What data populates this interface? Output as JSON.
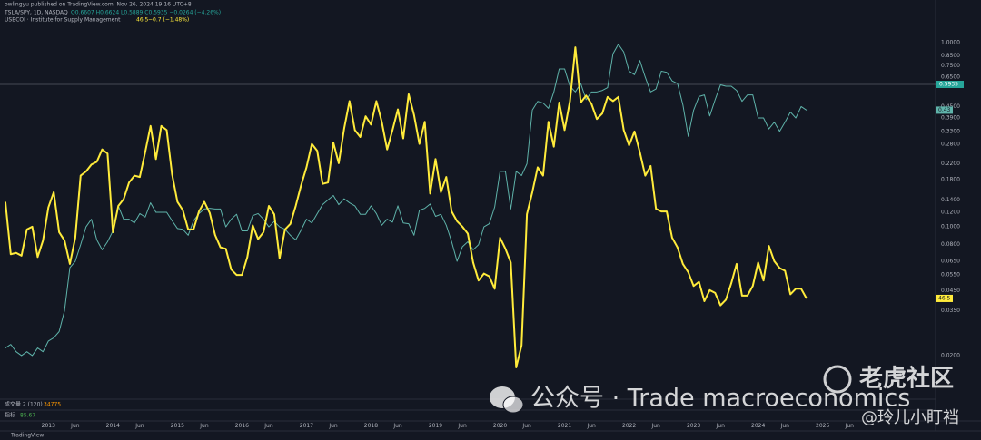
{
  "header": {
    "publisher": "owlingyu published on TradingView.com, Nov 26, 2024 19:16 UTC+8",
    "price_ohlc": "O0.6607 H0.6624 L0.5889 C0.5935 −0.0264 (−4.26%)",
    "ism_change": "−0.7 (−1.48%)"
  },
  "panes": [
    {
      "label": "成交量 2 (120)",
      "value": "34775"
    },
    {
      "label": "指标",
      "value": "85.67"
    }
  ],
  "watermark": {
    "wechat": "公众号 · Trade macroeconomics",
    "community": "老虎社区",
    "author": "@玲儿小盯裆"
  },
  "footer": {
    "brand": "TradingView"
  },
  "chart_data": {
    "type": "line",
    "x": [
      "2012-05",
      "2012-06",
      "2012-07",
      "2012-08",
      "2012-09",
      "2012-10",
      "2012-11",
      "2012-12",
      "2013-01",
      "2013-02",
      "2013-03",
      "2013-04",
      "2013-05",
      "2013-06",
      "2013-07",
      "2013-08",
      "2013-09",
      "2013-10",
      "2013-11",
      "2013-12",
      "2014-01",
      "2014-02",
      "2014-03",
      "2014-04",
      "2014-05",
      "2014-06",
      "2014-07",
      "2014-08",
      "2014-09",
      "2014-10",
      "2014-11",
      "2014-12",
      "2015-01",
      "2015-02",
      "2015-03",
      "2015-04",
      "2015-05",
      "2015-06",
      "2015-07",
      "2015-08",
      "2015-09",
      "2015-10",
      "2015-11",
      "2015-12",
      "2016-01",
      "2016-02",
      "2016-03",
      "2016-04",
      "2016-05",
      "2016-06",
      "2016-07",
      "2016-08",
      "2016-09",
      "2016-10",
      "2016-11",
      "2016-12",
      "2017-01",
      "2017-02",
      "2017-03",
      "2017-04",
      "2017-05",
      "2017-06",
      "2017-07",
      "2017-08",
      "2017-09",
      "2017-10",
      "2017-11",
      "2017-12",
      "2018-01",
      "2018-02",
      "2018-03",
      "2018-04",
      "2018-05",
      "2018-06",
      "2018-07",
      "2018-08",
      "2018-09",
      "2018-10",
      "2018-11",
      "2018-12",
      "2019-01",
      "2019-02",
      "2019-03",
      "2019-04",
      "2019-05",
      "2019-06",
      "2019-07",
      "2019-08",
      "2019-09",
      "2019-10",
      "2019-11",
      "2019-12",
      "2020-01",
      "2020-02",
      "2020-03",
      "2020-04",
      "2020-05",
      "2020-06",
      "2020-07",
      "2020-08",
      "2020-09",
      "2020-10",
      "2020-11",
      "2020-12",
      "2021-01",
      "2021-02",
      "2021-03",
      "2021-04",
      "2021-05",
      "2021-06",
      "2021-07",
      "2021-08",
      "2021-09",
      "2021-10",
      "2021-11",
      "2021-12",
      "2022-01",
      "2022-02",
      "2022-03",
      "2022-04",
      "2022-05",
      "2022-06",
      "2022-07",
      "2022-08",
      "2022-09",
      "2022-10",
      "2022-11",
      "2022-12",
      "2023-01",
      "2023-02",
      "2023-03",
      "2023-04",
      "2023-05",
      "2023-06",
      "2023-07",
      "2023-08",
      "2023-09",
      "2023-10",
      "2023-11",
      "2023-12",
      "2024-01",
      "2024-02",
      "2024-03",
      "2024-04",
      "2024-05",
      "2024-06",
      "2024-07",
      "2024-08",
      "2024-09",
      "2024-10"
    ],
    "series": [
      {
        "name": "TSLA/SPY, 1D, NASDAQ",
        "color": "#5fb3aa",
        "axis": "y",
        "values": [
          0.022,
          0.023,
          0.021,
          0.02,
          0.021,
          0.02,
          0.022,
          0.021,
          0.024,
          0.025,
          0.027,
          0.035,
          0.06,
          0.065,
          0.08,
          0.1,
          0.11,
          0.085,
          0.075,
          0.083,
          0.095,
          0.13,
          0.11,
          0.11,
          0.105,
          0.118,
          0.113,
          0.135,
          0.12,
          0.12,
          0.12,
          0.108,
          0.098,
          0.097,
          0.09,
          0.108,
          0.118,
          0.125,
          0.126,
          0.125,
          0.125,
          0.1,
          0.11,
          0.117,
          0.095,
          0.095,
          0.115,
          0.118,
          0.11,
          0.1,
          0.107,
          0.1,
          0.097,
          0.09,
          0.085,
          0.096,
          0.11,
          0.105,
          0.118,
          0.132,
          0.14,
          0.148,
          0.132,
          0.142,
          0.135,
          0.13,
          0.117,
          0.117,
          0.13,
          0.118,
          0.102,
          0.11,
          0.106,
          0.13,
          0.105,
          0.104,
          0.09,
          0.123,
          0.126,
          0.133,
          0.114,
          0.117,
          0.102,
          0.083,
          0.065,
          0.078,
          0.083,
          0.075,
          0.08,
          0.1,
          0.104,
          0.128,
          0.2,
          0.2,
          0.125,
          0.2,
          0.19,
          0.22,
          0.43,
          0.48,
          0.47,
          0.44,
          0.54,
          0.72,
          0.72,
          0.58,
          0.54,
          0.6,
          0.49,
          0.54,
          0.54,
          0.55,
          0.57,
          0.87,
          0.98,
          0.89,
          0.7,
          0.67,
          0.8,
          0.65,
          0.54,
          0.56,
          0.7,
          0.69,
          0.62,
          0.6,
          0.46,
          0.31,
          0.43,
          0.51,
          0.52,
          0.4,
          0.49,
          0.59,
          0.58,
          0.58,
          0.55,
          0.48,
          0.52,
          0.52,
          0.39,
          0.39,
          0.34,
          0.37,
          0.33,
          0.37,
          0.42,
          0.39,
          0.45,
          0.43
        ]
      },
      {
        "name": "USBCOI · Institute for Supply Management",
        "color": "#ffeb3b",
        "axis": "y2",
        "values": [
          53.5,
          49.7,
          49.8,
          49.6,
          51.5,
          51.7,
          49.5,
          50.7,
          53.1,
          54.2,
          51.3,
          50.7,
          49.0,
          50.9,
          55.4,
          55.7,
          56.2,
          56.4,
          57.3,
          57.0,
          51.3,
          53.2,
          53.7,
          54.9,
          55.4,
          55.3,
          57.1,
          59.0,
          56.6,
          59.0,
          58.7,
          55.5,
          53.5,
          52.9,
          51.5,
          51.5,
          52.8,
          53.5,
          52.7,
          51.1,
          50.2,
          50.1,
          48.6,
          48.2,
          48.2,
          49.5,
          51.8,
          50.8,
          51.3,
          53.2,
          52.6,
          49.4,
          51.5,
          51.9,
          53.2,
          54.7,
          56.0,
          57.7,
          57.2,
          54.8,
          54.9,
          57.8,
          56.3,
          58.8,
          60.8,
          58.7,
          58.2,
          59.7,
          59.1,
          60.8,
          59.3,
          57.3,
          58.7,
          60.2,
          58.1,
          61.3,
          59.8,
          57.7,
          59.3,
          54.1,
          56.6,
          54.2,
          55.3,
          52.8,
          52.1,
          51.7,
          51.2,
          49.1,
          47.8,
          48.3,
          48.1,
          47.2,
          50.9,
          50.1,
          49.1,
          41.5,
          43.1,
          52.6,
          54.2,
          56.0,
          55.4,
          59.3,
          57.5,
          60.7,
          58.7,
          60.8,
          64.7,
          60.7,
          61.2,
          60.6,
          59.5,
          59.9,
          61.1,
          60.8,
          61.1,
          58.7,
          57.6,
          58.6,
          57.1,
          55.4,
          56.1,
          53.0,
          52.8,
          52.8,
          50.9,
          50.2,
          49.0,
          48.4,
          47.4,
          47.7,
          46.3,
          47.1,
          46.9,
          46.0,
          46.4,
          47.6,
          49.0,
          46.7,
          46.7,
          47.4,
          49.1,
          47.8,
          50.3,
          49.2,
          48.7,
          48.5,
          46.8,
          47.2,
          47.2,
          46.5
        ]
      }
    ],
    "xlim": [
      "2012-04",
      "2026-10"
    ],
    "xticks": [
      2013,
      {
        "value": "2013-06",
        "label": "Jun"
      },
      2014,
      {
        "value": "2014-06",
        "label": "Jun"
      },
      2015,
      {
        "value": "2015-06",
        "label": "Jun"
      },
      2016,
      {
        "value": "2016-06",
        "label": "Jun"
      },
      2017,
      {
        "value": "2017-06",
        "label": "Jun"
      },
      2018,
      {
        "value": "2018-06",
        "label": "Jun"
      },
      2019,
      {
        "value": "2019-06",
        "label": "Jun"
      },
      2020,
      {
        "value": "2020-06",
        "label": "Jun"
      },
      2021,
      {
        "value": "2021-06",
        "label": "Jun"
      },
      2022,
      {
        "value": "2022-06",
        "label": "Jun"
      },
      2023,
      {
        "value": "2023-06",
        "label": "Jun"
      },
      2024,
      {
        "value": "2024-06",
        "label": "Jun"
      },
      2025,
      {
        "value": "2025-06",
        "label": "Jun"
      }
    ],
    "ylim": [
      0.0116,
      1.556
    ],
    "ylog": true,
    "yticks": [
      {
        "value": 1,
        "label": "1.0000"
      },
      {
        "value": 0.85,
        "label": "0.8500"
      },
      {
        "value": 0.75,
        "label": "0.7500"
      },
      {
        "value": 0.65,
        "label": "0.6500"
      },
      {
        "value": 0.45,
        "label": "0.4500"
      },
      {
        "value": 0.39,
        "label": "0.3900"
      },
      {
        "value": 0.33,
        "label": "0.3300"
      },
      {
        "value": 0.28,
        "label": "0.2800"
      },
      {
        "value": 0.22,
        "label": "0.2200"
      },
      {
        "value": 0.18,
        "label": "0.1800"
      },
      {
        "value": 0.14,
        "label": "0.1400"
      },
      {
        "value": 0.12,
        "label": "0.1200"
      },
      {
        "value": 0.1,
        "label": "0.1000"
      },
      {
        "value": 0.08,
        "label": "0.0800"
      },
      {
        "value": 0.065,
        "label": "0.0650"
      },
      {
        "value": 0.055,
        "label": "0.0550"
      },
      {
        "value": 0.045,
        "label": "0.0450"
      },
      {
        "value": 0.035,
        "label": "0.0350"
      },
      {
        "value": 0.02,
        "label": "0.0200"
      }
    ],
    "y2lim": [
      39.2,
      67.6
    ],
    "last_price": {
      "value": 0.5935,
      "label": "0.5935"
    },
    "grid": false
  }
}
